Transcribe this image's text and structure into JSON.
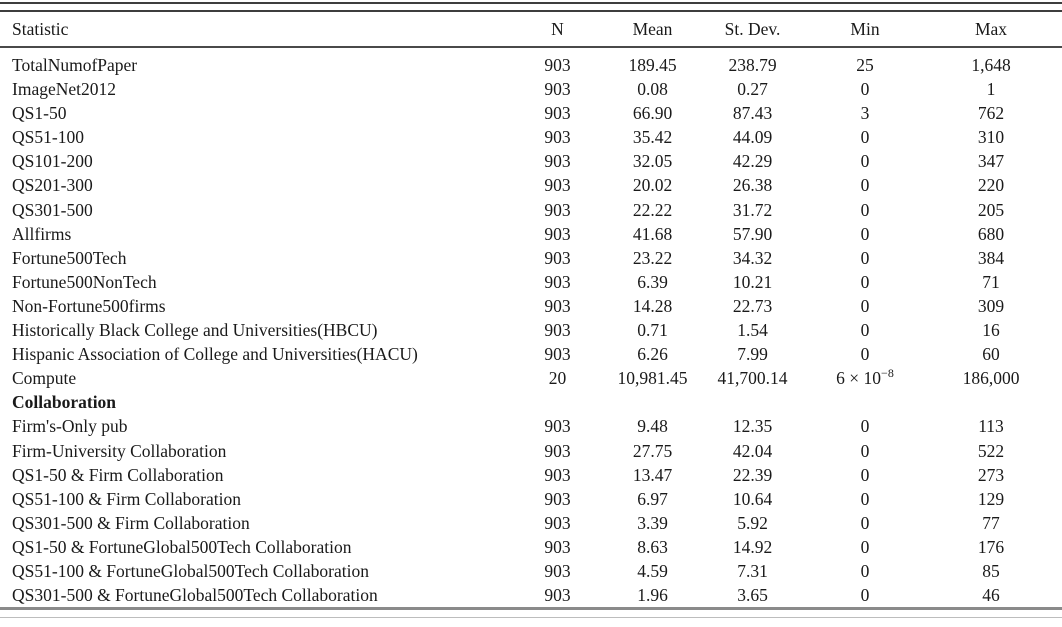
{
  "colors": {
    "text": "#1a1a1a",
    "top_rule": "#3d3d3d",
    "header_rule": "#4a4a4a",
    "bottom_rule": "#8a8a8a",
    "background": "#ffffff"
  },
  "table": {
    "columns": [
      {
        "key": "statistic",
        "label": "Statistic"
      },
      {
        "key": "n",
        "label": "N"
      },
      {
        "key": "mean",
        "label": "Mean"
      },
      {
        "key": "sd",
        "label": "St. Dev."
      },
      {
        "key": "min",
        "label": "Min"
      },
      {
        "key": "max",
        "label": "Max"
      }
    ],
    "rows": [
      {
        "label": "TotalNumofPaper",
        "n": "903",
        "mean": "189.45",
        "sd": "238.79",
        "min": "25",
        "max": "1,648"
      },
      {
        "label": "ImageNet2012",
        "n": "903",
        "mean": "0.08",
        "sd": "0.27",
        "min": "0",
        "max": "1"
      },
      {
        "label": "QS1-50",
        "n": "903",
        "mean": "66.90",
        "sd": "87.43",
        "min": "3",
        "max": "762"
      },
      {
        "label": "QS51-100",
        "n": "903",
        "mean": "35.42",
        "sd": "44.09",
        "min": "0",
        "max": "310"
      },
      {
        "label": "QS101-200",
        "n": "903",
        "mean": "32.05",
        "sd": "42.29",
        "min": "0",
        "max": "347"
      },
      {
        "label": "QS201-300",
        "n": "903",
        "mean": "20.02",
        "sd": "26.38",
        "min": "0",
        "max": "220"
      },
      {
        "label": "QS301-500",
        "n": "903",
        "mean": "22.22",
        "sd": "31.72",
        "min": "0",
        "max": "205"
      },
      {
        "label": "Allfirms",
        "n": "903",
        "mean": "41.68",
        "sd": "57.90",
        "min": "0",
        "max": "680"
      },
      {
        "label": "Fortune500Tech",
        "n": "903",
        "mean": "23.22",
        "sd": "34.32",
        "min": "0",
        "max": "384"
      },
      {
        "label": "Fortune500NonTech",
        "n": "903",
        "mean": "6.39",
        "sd": "10.21",
        "min": "0",
        "max": "71"
      },
      {
        "label": "Non-Fortune500firms",
        "n": "903",
        "mean": "14.28",
        "sd": "22.73",
        "min": "0",
        "max": "309"
      },
      {
        "label": "Historically Black College and Universities(HBCU)",
        "n": "903",
        "mean": "0.71",
        "sd": "1.54",
        "min": "0",
        "max": "16"
      },
      {
        "label": "Hispanic Association of College and Universities(HACU)",
        "n": "903",
        "mean": "6.26",
        "sd": "7.99",
        "min": "0",
        "max": "60"
      },
      {
        "label": "Compute",
        "n": "20",
        "mean": "10,981.45",
        "sd": "41,700.14",
        "min": "6 × 10",
        "min_exponent": "−8",
        "max": "186,000"
      },
      {
        "label": "Collaboration",
        "section": true
      },
      {
        "label": "Firm's-Only pub",
        "n": "903",
        "mean": "9.48",
        "sd": "12.35",
        "min": "0",
        "max": "113"
      },
      {
        "label": "Firm-University Collaboration",
        "n": "903",
        "mean": "27.75",
        "sd": "42.04",
        "min": "0",
        "max": "522"
      },
      {
        "label": "QS1-50 & Firm Collaboration",
        "n": "903",
        "mean": "13.47",
        "sd": "22.39",
        "min": "0",
        "max": "273"
      },
      {
        "label": "QS51-100 & Firm Collaboration",
        "n": "903",
        "mean": "6.97",
        "sd": "10.64",
        "min": "0",
        "max": "129"
      },
      {
        "label": "QS301-500 & Firm Collaboration",
        "n": "903",
        "mean": "3.39",
        "sd": "5.92",
        "min": "0",
        "max": "77"
      },
      {
        "label": "QS1-50 & FortuneGlobal500Tech Collaboration",
        "n": "903",
        "mean": "8.63",
        "sd": "14.92",
        "min": "0",
        "max": "176"
      },
      {
        "label": "QS51-100 & FortuneGlobal500Tech Collaboration",
        "n": "903",
        "mean": "4.59",
        "sd": "7.31",
        "min": "0",
        "max": "85"
      },
      {
        "label": "QS301-500 & FortuneGlobal500Tech Collaboration",
        "n": "903",
        "mean": "1.96",
        "sd": "3.65",
        "min": "0",
        "max": "46"
      }
    ]
  }
}
